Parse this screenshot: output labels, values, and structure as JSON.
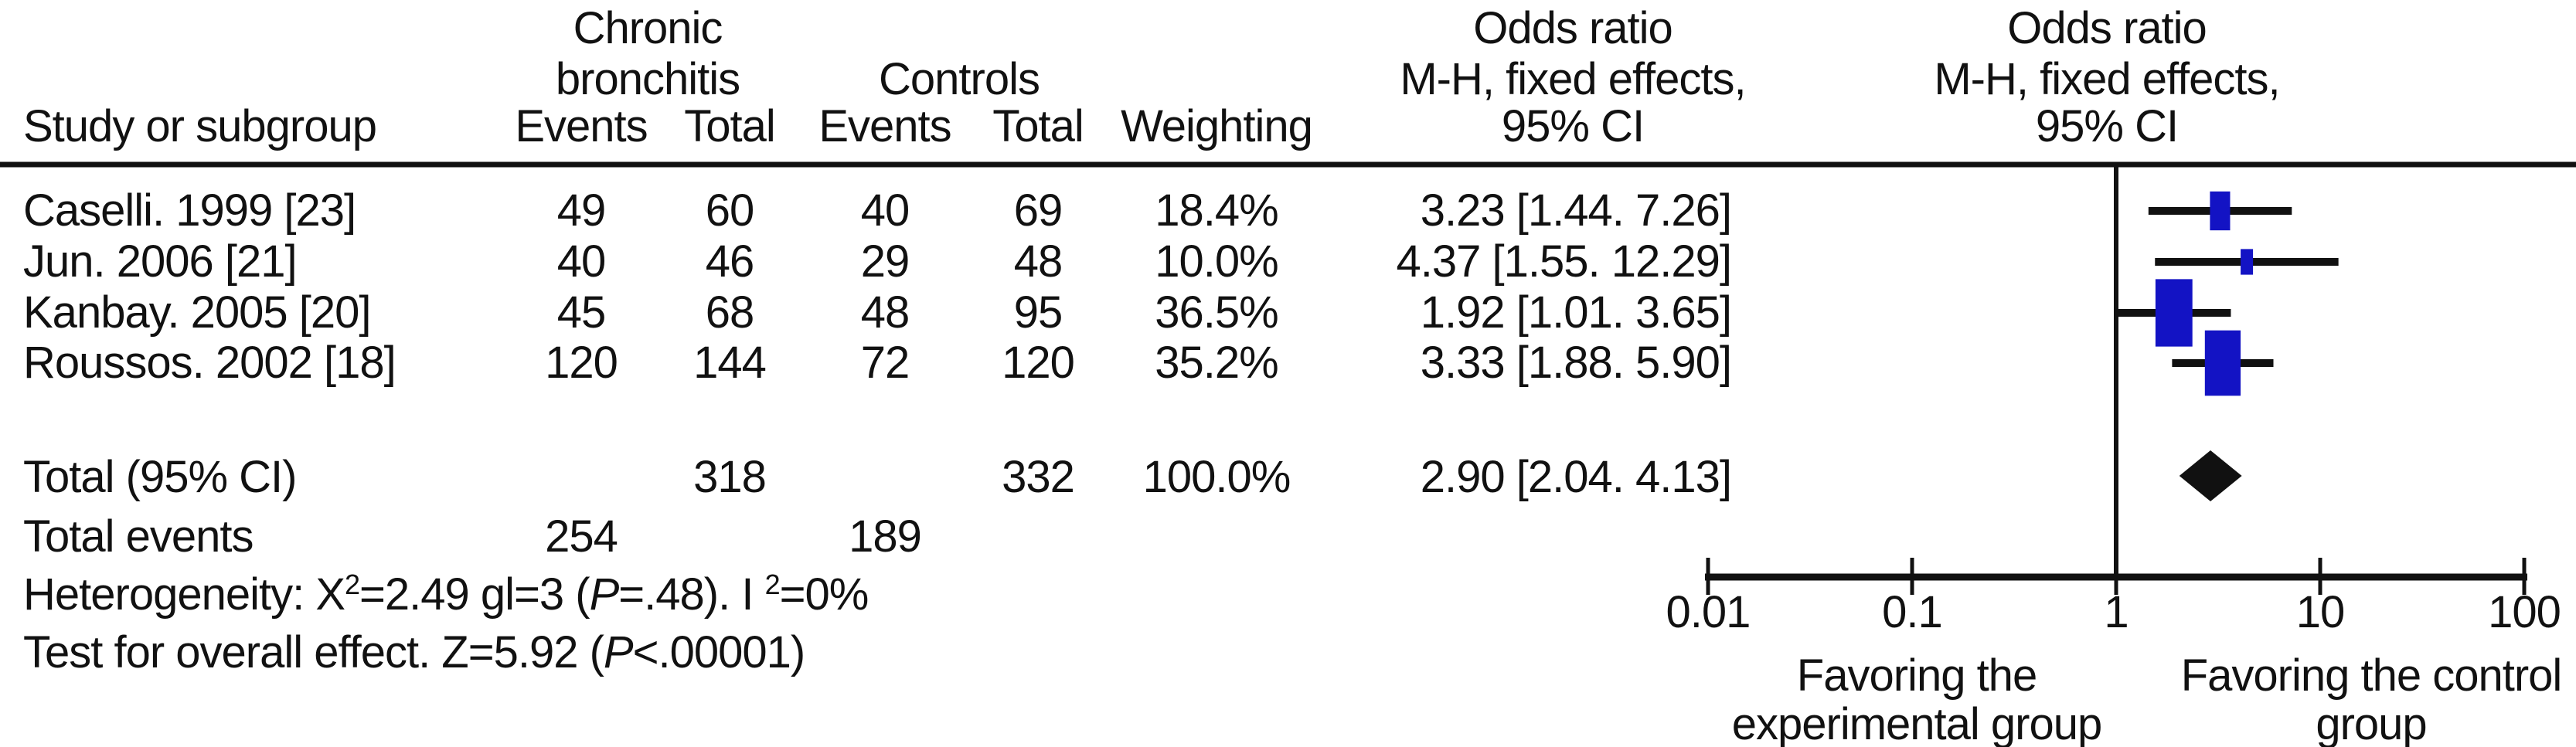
{
  "figure": {
    "background": "#ffffff",
    "text_color": "#111111",
    "accent_blue": "#1313c4"
  },
  "table": {
    "study_header": "Study or subgroup",
    "group1_line1": "Chronic",
    "group1_line2": "bronchitis",
    "group2": "Controls",
    "events_header_1": "Events",
    "total_header_1": "Total",
    "events_header_2": "Events",
    "total_header_2": "Total",
    "weighting_header": "Weighting",
    "or_header": [
      "Odds ratio",
      "M-H, fixed effects,",
      "95% CI"
    ],
    "plot_header": [
      "Odds ratio",
      "M-H, fixed effects,",
      "95% CI"
    ]
  },
  "studies": [
    {
      "name": "Caselli. 1999 [23]",
      "cb_events": "49",
      "cb_total": "60",
      "ctl_events": "40",
      "ctl_total": "69",
      "weight": "18.4%",
      "or_ci": "3.23 [1.44. 7.26]"
    },
    {
      "name": "Jun. 2006 [21]",
      "cb_events": "40",
      "cb_total": "46",
      "ctl_events": "29",
      "ctl_total": "48",
      "weight": "10.0%",
      "or_ci": "4.37 [1.55. 12.29]"
    },
    {
      "name": "Kanbay. 2005 [20]",
      "cb_events": "45",
      "cb_total": "68",
      "ctl_events": "48",
      "ctl_total": "95",
      "weight": "36.5%",
      "or_ci": "1.92 [1.01. 3.65]"
    },
    {
      "name": "Roussos. 2002 [18]",
      "cb_events": "120",
      "cb_total": "144",
      "ctl_events": "72",
      "ctl_total": "120",
      "weight": "35.2%",
      "or_ci": "3.33 [1.88. 5.90]"
    }
  ],
  "totals": {
    "label": "Total (95% CI)",
    "cb_total": "318",
    "ctl_total": "332",
    "weight": "100.0%",
    "or_ci": "2.90 [2.04. 4.13]",
    "events_label": "Total events",
    "cb_events": "254",
    "ctl_events": "189"
  },
  "footer": {
    "heterogeneity": {
      "prefix": "Heterogeneity: X",
      "sup1": "2",
      "mid": "=2.49 gl=3 (",
      "p": "P",
      "mid2": "=.48). I ",
      "sup2": "2",
      "tail": "=0%"
    },
    "overall": {
      "prefix": "Test for overall effect. Z=5.92 (",
      "p": "P",
      "tail": "<.00001)"
    }
  },
  "chart_data": {
    "type": "forest",
    "x_scale": "log10",
    "xlim": [
      0.01,
      100
    ],
    "x_ticks": [
      0.01,
      0.1,
      1,
      10,
      100
    ],
    "x_tick_labels": [
      "0.01",
      "0.1",
      "1",
      "10",
      "100"
    ],
    "null_line": 1,
    "effect_measure": "Odds ratio, M-H fixed effects, 95% CI",
    "studies": [
      {
        "name": "Caselli. 1999 [23]",
        "or": 3.23,
        "ci_low": 1.44,
        "ci_high": 7.26,
        "weight_pct": 18.4
      },
      {
        "name": "Jun. 2006 [21]",
        "or": 4.37,
        "ci_low": 1.55,
        "ci_high": 12.29,
        "weight_pct": 10.0
      },
      {
        "name": "Kanbay. 2005 [20]",
        "or": 1.92,
        "ci_low": 1.01,
        "ci_high": 3.65,
        "weight_pct": 36.5
      },
      {
        "name": "Roussos. 2002 [18]",
        "or": 3.33,
        "ci_low": 1.88,
        "ci_high": 5.9,
        "weight_pct": 35.2
      }
    ],
    "summary": {
      "label": "Total (95% CI)",
      "or": 2.9,
      "ci_low": 2.04,
      "ci_high": 4.13,
      "weight_pct": 100.0
    },
    "favoring_left": [
      "Favoring the",
      "experimental group"
    ],
    "favoring_right": [
      "Favoring the control",
      "group"
    ],
    "marker_color": "#1313c4",
    "line_color": "#111111"
  }
}
